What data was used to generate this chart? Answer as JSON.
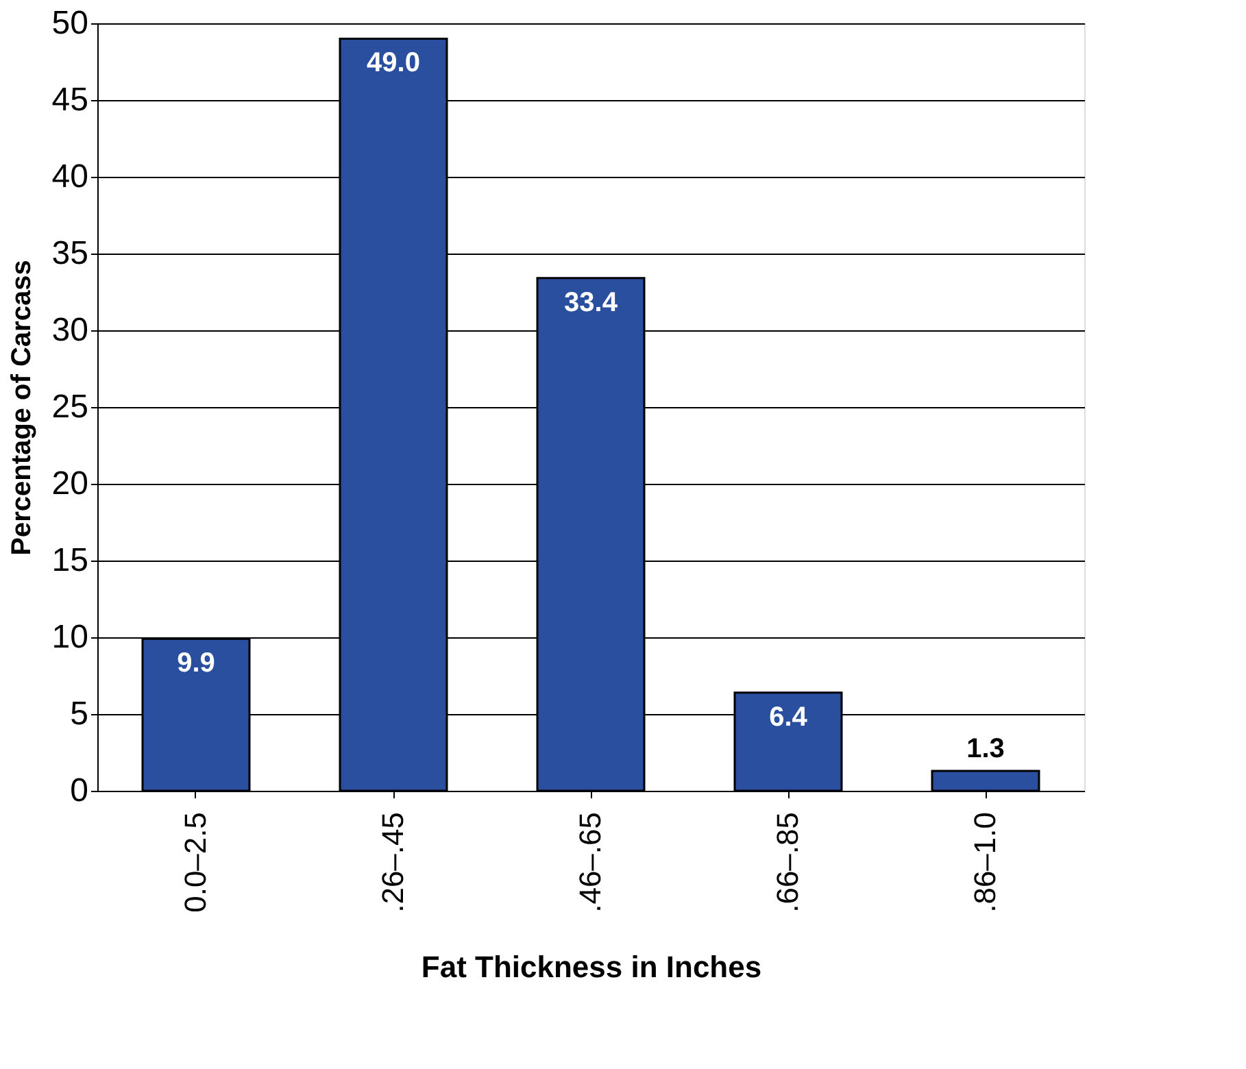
{
  "chart_data": {
    "type": "bar",
    "xlabel": "Fat Thickness in Inches",
    "ylabel": "Percentage of Carcass",
    "categories": [
      "0.0–2.5",
      ".26–.45",
      ".46–.65",
      ".66–.85",
      ".86–1.0"
    ],
    "values": [
      9.9,
      49.0,
      33.4,
      6.4,
      1.3
    ],
    "value_labels": [
      "9.9",
      "49.0",
      "33.4",
      "6.4",
      "1.3"
    ],
    "color": "#2a4f9e",
    "ylim": [
      0,
      50
    ],
    "yticks": [
      0,
      5,
      10,
      15,
      20,
      25,
      30,
      35,
      40,
      45,
      50
    ],
    "grid": "y"
  }
}
